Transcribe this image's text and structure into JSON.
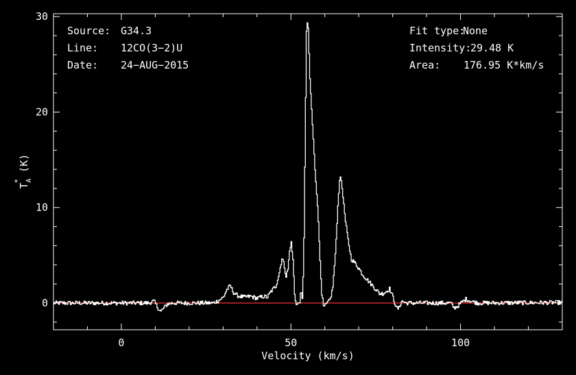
{
  "chart_data": {
    "type": "line",
    "xlabel": "Velocity (km/s)",
    "ylabel_main": "T",
    "ylabel_sub": "A",
    "ylabel_sup": "*",
    "ylabel_tail": " (K)",
    "xlim": [
      -20,
      130
    ],
    "ylim": [
      -2.8,
      30.3
    ],
    "xticks": [
      0,
      50,
      100
    ],
    "yticks": [
      0,
      10,
      20,
      30
    ],
    "grid": false,
    "baseline": 0,
    "colors": {
      "background": "#000000",
      "axes": "#ffffff",
      "spectrum": "#ffffff",
      "baseline": "#cc2a2a"
    },
    "info_left": [
      {
        "key": "Source:",
        "value": "G34.3"
      },
      {
        "key": "Line:",
        "value": "12CO(3−2)U"
      },
      {
        "key": "Date:",
        "value": "24−AUG−2015"
      }
    ],
    "info_right": [
      {
        "key": "Fit type:",
        "value": "None"
      },
      {
        "key": "Intensity:",
        "value": "29.48 K"
      },
      {
        "key": "Area:",
        "value": "176.95 K*km/s"
      }
    ],
    "series": [
      {
        "noise": 0.22,
        "points": [
          [
            -20,
            0.0
          ],
          [
            8,
            0.0
          ],
          [
            9.5,
            0.2
          ],
          [
            10.5,
            -0.4
          ],
          [
            11.5,
            -0.9
          ],
          [
            12.5,
            -0.5
          ],
          [
            13.5,
            -0.1
          ],
          [
            15,
            0.0
          ],
          [
            27,
            0.0
          ],
          [
            28.5,
            0.25
          ],
          [
            30,
            0.6
          ],
          [
            31,
            1.4
          ],
          [
            32,
            1.8
          ],
          [
            33,
            1.1
          ],
          [
            34,
            0.8
          ],
          [
            36,
            0.6
          ],
          [
            38,
            0.7
          ],
          [
            40,
            0.5
          ],
          [
            42,
            0.7
          ],
          [
            43,
            0.6
          ],
          [
            44,
            1.2
          ],
          [
            45.5,
            1.8
          ],
          [
            46.5,
            3.2
          ],
          [
            47.3,
            4.8
          ],
          [
            48,
            3.8
          ],
          [
            48.5,
            2.8
          ],
          [
            49,
            3.5
          ],
          [
            49.6,
            5.8
          ],
          [
            50,
            6.3
          ],
          [
            50.5,
            4.5
          ],
          [
            51,
            1.0
          ],
          [
            51.5,
            -0.2
          ],
          [
            52,
            -0.1
          ],
          [
            52.5,
            0.2
          ],
          [
            52.9,
            1.2
          ],
          [
            53.3,
            0.2
          ],
          [
            53.7,
            5.5
          ],
          [
            54.2,
            20.0
          ],
          [
            54.5,
            28.5
          ],
          [
            54.7,
            29.48
          ],
          [
            55.0,
            28.7
          ],
          [
            55.5,
            23.5
          ],
          [
            56.2,
            19.0
          ],
          [
            57,
            14.0
          ],
          [
            57.8,
            10.0
          ],
          [
            58.5,
            4.5
          ],
          [
            59,
            1.0
          ],
          [
            59.5,
            -0.4
          ],
          [
            60,
            -0.3
          ],
          [
            60.7,
            0.0
          ],
          [
            61.5,
            0.4
          ],
          [
            62.2,
            1.5
          ],
          [
            63,
            5.0
          ],
          [
            63.8,
            10.5
          ],
          [
            64.3,
            13.2
          ],
          [
            64.7,
            13.0
          ],
          [
            65.3,
            11.0
          ],
          [
            66,
            8.5
          ],
          [
            66.8,
            6.5
          ],
          [
            67.7,
            4.6
          ],
          [
            69,
            4.1
          ],
          [
            70,
            3.6
          ],
          [
            71,
            3.0
          ],
          [
            72,
            2.6
          ],
          [
            73,
            2.2
          ],
          [
            74,
            1.8
          ],
          [
            75,
            1.4
          ],
          [
            76,
            1.0
          ],
          [
            77,
            1.0
          ],
          [
            78,
            1.2
          ],
          [
            79,
            1.5
          ],
          [
            80,
            0.6
          ],
          [
            81,
            -0.5
          ],
          [
            81.7,
            -0.6
          ],
          [
            82.5,
            0.2
          ],
          [
            84,
            0.0
          ],
          [
            97,
            0.0
          ],
          [
            98,
            -0.5
          ],
          [
            99,
            -0.35
          ],
          [
            100,
            0.0
          ],
          [
            101.5,
            0.4
          ],
          [
            103,
            0.2
          ],
          [
            105,
            0.0
          ],
          [
            130,
            0.05
          ]
        ]
      }
    ]
  }
}
